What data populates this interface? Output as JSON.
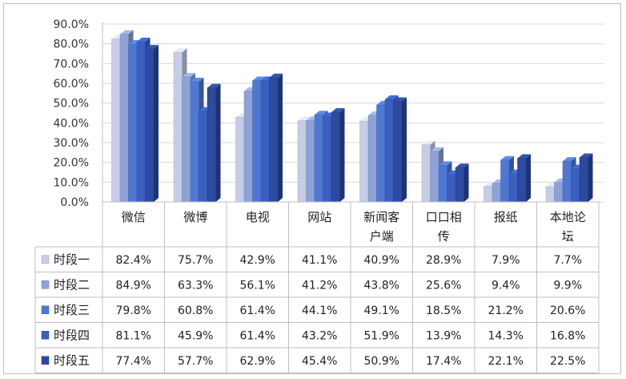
{
  "chart_data": {
    "type": "bar",
    "categories": [
      "微信",
      "微博",
      "电视",
      "网站",
      "新闻客户端",
      "口口相传",
      "报纸",
      "本地论坛"
    ],
    "category_lines": [
      [
        "微信"
      ],
      [
        "微博"
      ],
      [
        "电视"
      ],
      [
        "网站"
      ],
      [
        "新闻客",
        "户端"
      ],
      [
        "口口相",
        "传"
      ],
      [
        "报纸"
      ],
      [
        "本地论",
        "坛"
      ]
    ],
    "series": [
      {
        "name": "时段一",
        "values": [
          82.4,
          75.7,
          42.9,
          41.1,
          40.9,
          28.9,
          7.9,
          7.7
        ],
        "labels": [
          "82.4%",
          "75.7%",
          "42.9%",
          "41.1%",
          "40.9%",
          "28.9%",
          "7.9%",
          "7.7%"
        ],
        "color": "#c5cde8"
      },
      {
        "name": "时段二",
        "values": [
          84.9,
          63.3,
          56.1,
          41.2,
          43.8,
          25.6,
          9.4,
          9.9
        ],
        "labels": [
          "84.9%",
          "63.3%",
          "56.1%",
          "41.2%",
          "43.8%",
          "25.6%",
          "9.4%",
          "9.9%"
        ],
        "color": "#8ea2d8"
      },
      {
        "name": "时段三",
        "values": [
          79.8,
          60.8,
          61.4,
          44.1,
          49.1,
          18.5,
          21.2,
          20.6
        ],
        "labels": [
          "79.8%",
          "60.8%",
          "61.4%",
          "44.1%",
          "49.1%",
          "18.5%",
          "21.2%",
          "20.6%"
        ],
        "color": "#4f78d2"
      },
      {
        "name": "时段四",
        "values": [
          81.1,
          45.9,
          61.4,
          43.2,
          51.9,
          13.9,
          14.3,
          16.8
        ],
        "labels": [
          "81.1%",
          "45.9%",
          "61.4%",
          "43.2%",
          "51.9%",
          "13.9%",
          "14.3%",
          "16.8%"
        ],
        "color": "#3a5fbf"
      },
      {
        "name": "时段五",
        "values": [
          77.4,
          57.7,
          62.9,
          45.4,
          50.9,
          17.4,
          22.1,
          22.5
        ],
        "labels": [
          "77.4%",
          "57.7%",
          "62.9%",
          "45.4%",
          "50.9%",
          "17.4%",
          "22.1%",
          "22.5%"
        ],
        "color": "#2c4a9e"
      }
    ],
    "yticks": [
      "0.0%",
      "10.0%",
      "20.0%",
      "30.0%",
      "40.0%",
      "50.0%",
      "60.0%",
      "70.0%",
      "80.0%",
      "90.0%"
    ],
    "ylim": [
      0,
      90
    ],
    "grid": true,
    "legend": "data-table-left"
  }
}
